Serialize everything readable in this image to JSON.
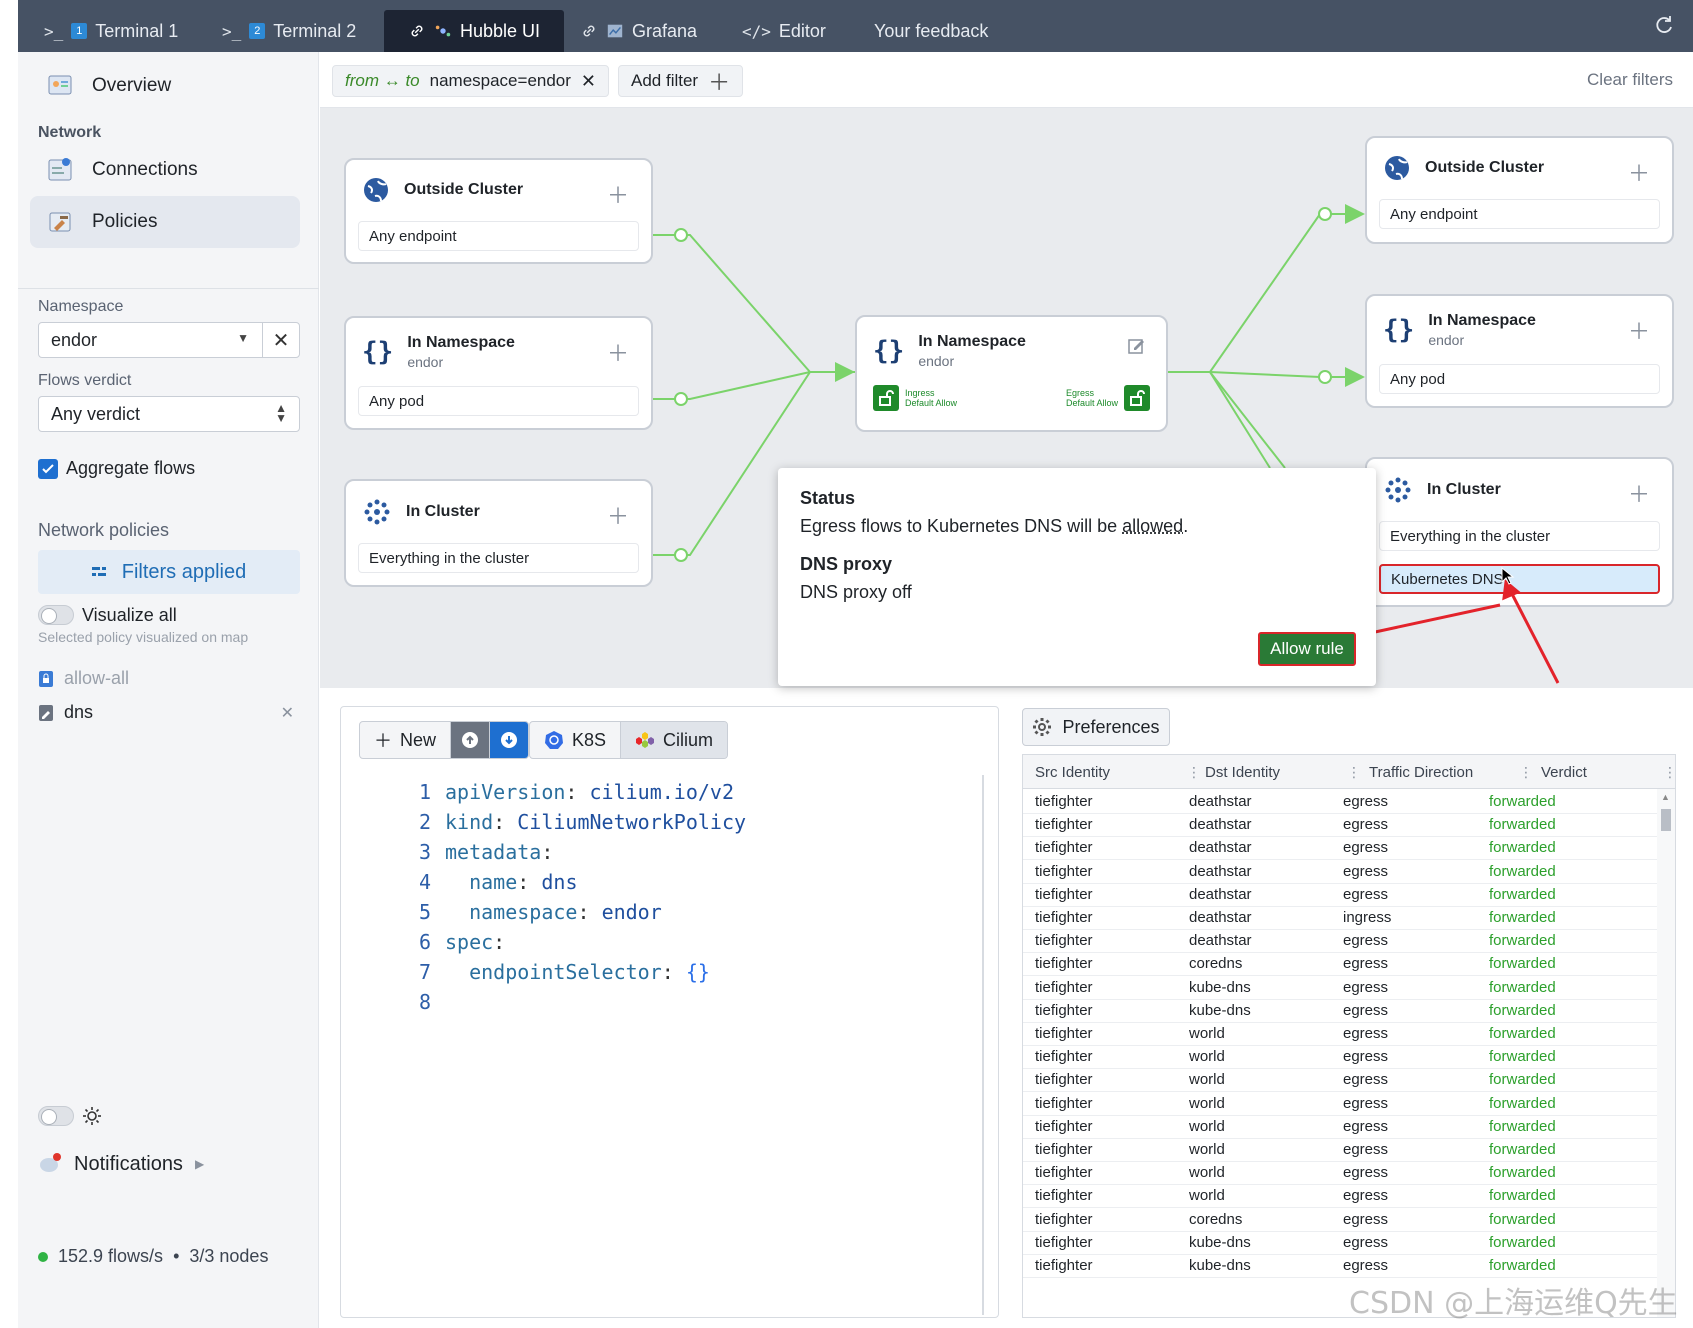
{
  "tabs": [
    {
      "prefix": ">_",
      "num": "1",
      "label": "Terminal 1"
    },
    {
      "prefix": ">_",
      "num": "2",
      "label": "Terminal 2"
    },
    {
      "label": "Hubble UI"
    },
    {
      "label": "Grafana"
    },
    {
      "label": "Editor"
    },
    {
      "label": "Your feedback"
    }
  ],
  "sidebar": {
    "overview": "Overview",
    "network_heading": "Network",
    "connections": "Connections",
    "policies": "Policies",
    "namespace_label": "Namespace",
    "namespace_value": "endor",
    "verdict_label": "Flows verdict",
    "verdict_value": "Any verdict",
    "aggregate": "Aggregate flows",
    "network_policies_heading": "Network policies",
    "filters_applied": "Filters applied",
    "visualize_all": "Visualize all",
    "visualize_hint": "Selected policy visualized on map",
    "policies_list": [
      "allow-all",
      "dns"
    ],
    "notifications": "Notifications",
    "flows_rate": "152.9 flows/s",
    "bullet": "•",
    "nodes": "3/3 nodes"
  },
  "filterbar": {
    "direction": "from ↔ to",
    "filter": "namespace=endor",
    "add_filter": "Add filter",
    "clear": "Clear filters"
  },
  "map": {
    "left": [
      {
        "title": "Outside Cluster",
        "row": "Any endpoint"
      },
      {
        "title": "In Namespace",
        "sub": "endor",
        "row": "Any pod"
      },
      {
        "title": "In Cluster",
        "row": "Everything in the cluster"
      }
    ],
    "center": {
      "title": "In Namespace",
      "sub": "endor",
      "ingress": [
        "Ingress",
        "Default Allow"
      ],
      "egress": [
        "Egress",
        "Default Allow"
      ]
    },
    "right": [
      {
        "title": "Outside Cluster",
        "row": "Any endpoint"
      },
      {
        "title": "In Namespace",
        "sub": "endor",
        "row": "Any pod"
      },
      {
        "title": "In Cluster",
        "rows": [
          "Everything in the cluster",
          "Kubernetes DNS"
        ]
      }
    ]
  },
  "popup": {
    "status_title": "Status",
    "status_pre": "Egress flows to Kubernetes DNS will be ",
    "status_word": "allowed",
    "status_post": ".",
    "dns_title": "DNS proxy",
    "dns_text": "DNS proxy off",
    "button": "Allow rule"
  },
  "editor": {
    "new": "New",
    "k8s": "K8S",
    "cilium": "Cilium",
    "lines": [
      {
        "n": "1",
        "indent": "",
        "key": "apiVersion",
        "sep": ": ",
        "val": "cilium.io/v2"
      },
      {
        "n": "2",
        "indent": "",
        "key": "kind",
        "sep": ": ",
        "val": "CiliumNetworkPolicy"
      },
      {
        "n": "3",
        "indent": "",
        "key": "metadata",
        "sep": ":",
        "val": ""
      },
      {
        "n": "4",
        "indent": "  ",
        "key": "name",
        "sep": ": ",
        "val": "dns"
      },
      {
        "n": "5",
        "indent": "  ",
        "key": "namespace",
        "sep": ": ",
        "val": "endor"
      },
      {
        "n": "6",
        "indent": "",
        "key": "spec",
        "sep": ":",
        "val": ""
      },
      {
        "n": "7",
        "indent": "  ",
        "key": "endpointSelector",
        "sep": ": ",
        "val": "{}"
      },
      {
        "n": "8",
        "indent": "",
        "key": "",
        "sep": "",
        "val": ""
      }
    ]
  },
  "flows": {
    "preferences": "Preferences",
    "columns": [
      "Src Identity",
      "Dst Identity",
      "Traffic Direction",
      "Verdict"
    ],
    "rows": [
      [
        "tiefighter",
        "deathstar",
        "egress",
        "forwarded"
      ],
      [
        "tiefighter",
        "deathstar",
        "egress",
        "forwarded"
      ],
      [
        "tiefighter",
        "deathstar",
        "egress",
        "forwarded"
      ],
      [
        "tiefighter",
        "deathstar",
        "egress",
        "forwarded"
      ],
      [
        "tiefighter",
        "deathstar",
        "egress",
        "forwarded"
      ],
      [
        "tiefighter",
        "deathstar",
        "ingress",
        "forwarded"
      ],
      [
        "tiefighter",
        "deathstar",
        "egress",
        "forwarded"
      ],
      [
        "tiefighter",
        "coredns",
        "egress",
        "forwarded"
      ],
      [
        "tiefighter",
        "kube-dns",
        "egress",
        "forwarded"
      ],
      [
        "tiefighter",
        "kube-dns",
        "egress",
        "forwarded"
      ],
      [
        "tiefighter",
        "world",
        "egress",
        "forwarded"
      ],
      [
        "tiefighter",
        "world",
        "egress",
        "forwarded"
      ],
      [
        "tiefighter",
        "world",
        "egress",
        "forwarded"
      ],
      [
        "tiefighter",
        "world",
        "egress",
        "forwarded"
      ],
      [
        "tiefighter",
        "world",
        "egress",
        "forwarded"
      ],
      [
        "tiefighter",
        "world",
        "egress",
        "forwarded"
      ],
      [
        "tiefighter",
        "world",
        "egress",
        "forwarded"
      ],
      [
        "tiefighter",
        "world",
        "egress",
        "forwarded"
      ],
      [
        "tiefighter",
        "coredns",
        "egress",
        "forwarded"
      ],
      [
        "tiefighter",
        "kube-dns",
        "egress",
        "forwarded"
      ],
      [
        "tiefighter",
        "kube-dns",
        "egress",
        "forwarded"
      ]
    ]
  },
  "watermark": "CSDN @上海运维Q先生",
  "colors": {
    "accent": "#1e6fd0",
    "allow": "#2a7a36",
    "highlight": "#d9262a",
    "forwarded": "#2ca02c"
  }
}
